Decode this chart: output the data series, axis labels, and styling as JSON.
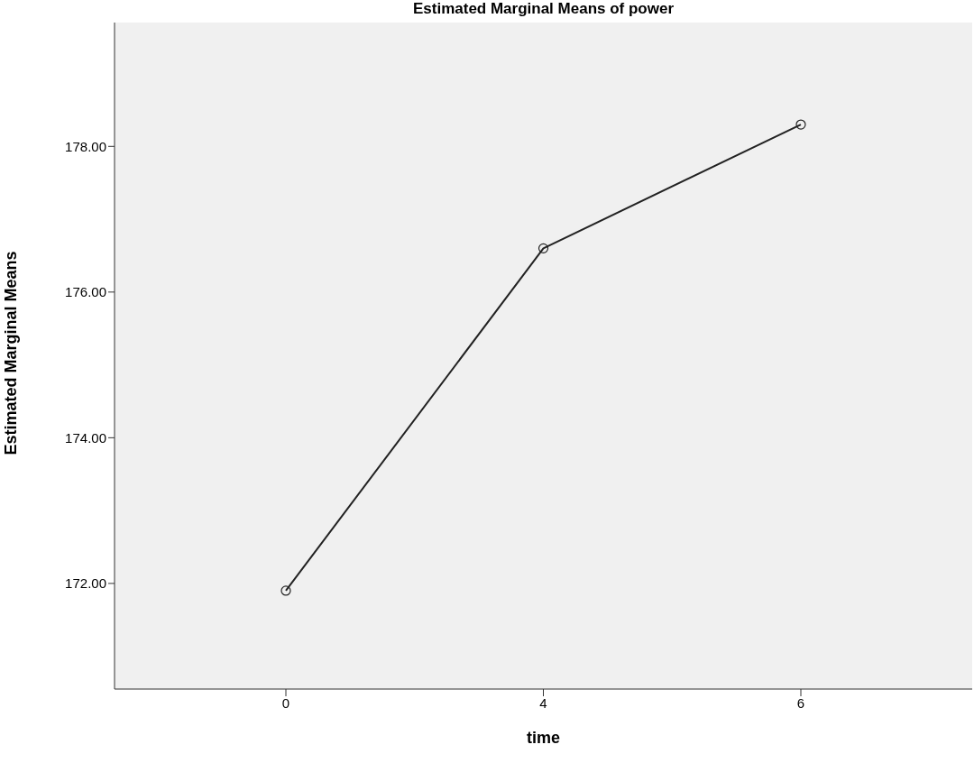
{
  "chart_data": {
    "type": "line",
    "title": "Estimated Marginal Means of power",
    "xlabel": "time",
    "ylabel": "Estimated Marginal Means",
    "categories": [
      "0",
      "4",
      "6"
    ],
    "series": [
      {
        "color": "#222222",
        "values": [
          171.9,
          176.6,
          178.3
        ]
      }
    ],
    "ylim": [
      170.55,
      179.7
    ],
    "yticks": [
      {
        "value": 172,
        "label": "172.00"
      },
      {
        "value": 174,
        "label": "174.00"
      },
      {
        "value": 176,
        "label": "176.00"
      },
      {
        "value": 178,
        "label": "178.00"
      }
    ],
    "grid": false,
    "marker": "circle",
    "line_style": "solid"
  }
}
